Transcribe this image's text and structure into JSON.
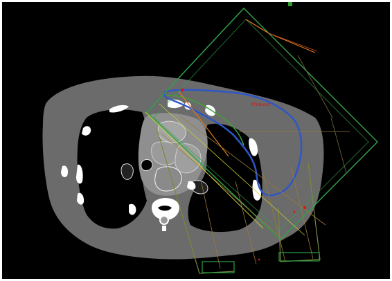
{
  "viewer": {
    "background": "#000000",
    "tissue_color": "#6b6b6b",
    "bone_color": "#ffffff",
    "lung_color": "#000000",
    "mediastinum_color": "#8f8f8f"
  },
  "contours": {
    "target_color": "#2f56c8",
    "structure_color": "#3aa33a",
    "structure_label": "PTVBoost",
    "label_color": "#d01818"
  },
  "beams": {
    "beam_1_color": "#2fa04a",
    "beam_2_color": "#7a8a3a",
    "central_axis_color": "#e07a20",
    "field_edge_color": "#9a7a3a",
    "isocenter_marker_color": "#d01818"
  },
  "marker": {
    "color": "#2ea02e"
  }
}
